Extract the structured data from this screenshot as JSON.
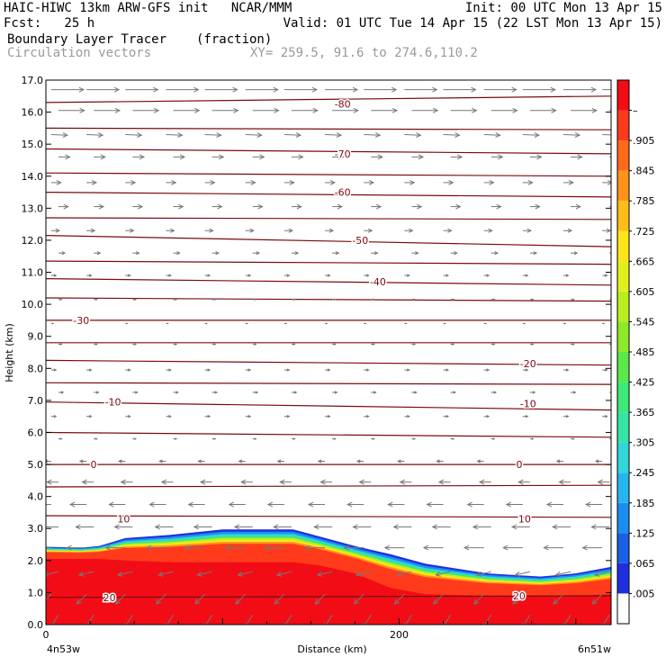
{
  "header": {
    "line1_left": "HAIC-HIWC 13km ARW-GFS init   NCAR/MMM",
    "line1_right": "Init: 00 UTC Mon 13 Apr 15",
    "line2_left": "Fcst:   25 h",
    "line2_right": "Valid: 01 UTC Tue 14 Apr 15 (22 LST Mon 13 Apr 15)",
    "line3_field": "Boundary Layer Tracer",
    "line3_units": "(fraction)",
    "line4_vectors": "Circulation vectors",
    "line4_xy": "XY= 259.5, 91.6 to 274.6,110.2"
  },
  "colors": {
    "contour": "#7a0a12",
    "vector": "#777777",
    "frame": "#000000"
  },
  "chart_data": {
    "type": "heatmap",
    "xlabel": "Distance (km)",
    "ylabel": "Height (km)",
    "xlim": [
      0,
      320
    ],
    "ylim": [
      0,
      17
    ],
    "x_ticks": [
      {
        "value": 0,
        "label": "0"
      },
      {
        "value": 200,
        "label": "200"
      }
    ],
    "x_endpoint_labels": {
      "left": "4n53w",
      "right": "6n51w"
    },
    "y_ticks": [
      {
        "value": 0,
        "label": "0.0"
      },
      {
        "value": 1,
        "label": "1.0"
      },
      {
        "value": 2,
        "label": "2.0"
      },
      {
        "value": 3,
        "label": "3.0"
      },
      {
        "value": 4,
        "label": "4.0"
      },
      {
        "value": 5,
        "label": "5.0"
      },
      {
        "value": 6,
        "label": "6.0"
      },
      {
        "value": 7,
        "label": "7.0"
      },
      {
        "value": 8,
        "label": "8.0"
      },
      {
        "value": 9,
        "label": "9.0"
      },
      {
        "value": 10,
        "label": "10.0"
      },
      {
        "value": 11,
        "label": "11.0"
      },
      {
        "value": 12,
        "label": "12.0"
      },
      {
        "value": 13,
        "label": "13.0"
      },
      {
        "value": 14,
        "label": "14.0"
      },
      {
        "value": 15,
        "label": "15.0"
      },
      {
        "value": 16,
        "label": "16.0"
      },
      {
        "value": 17,
        "label": "17.0"
      }
    ],
    "colorbar": {
      "labels": [
        ".005",
        ".065",
        ".125",
        ".185",
        ".245",
        ".305",
        ".365",
        ".425",
        ".485",
        ".545",
        ".605",
        ".665",
        ".725",
        ".785",
        ".845",
        ".905",
        "–"
      ],
      "colors": [
        "#ffffff",
        "#1f2fe0",
        "#1a60e6",
        "#1c8ef0",
        "#25b6ef",
        "#30d7d6",
        "#34e5a6",
        "#3ee978",
        "#5ce74a",
        "#8cea2a",
        "#bbee20",
        "#e1f01c",
        "#ffe41a",
        "#ffbd18",
        "#ff9419",
        "#ff6a1a",
        "#ff3b1c",
        "#f20d16"
      ]
    },
    "tracer_field": {
      "fraction_near_surface": 0.97,
      "top_profile": [
        {
          "x": 0,
          "top": 2.43,
          "red_top": 2.05
        },
        {
          "x": 20,
          "top": 2.4,
          "red_top": 2.05
        },
        {
          "x": 30,
          "top": 2.45,
          "red_top": 2.05
        },
        {
          "x": 45,
          "top": 2.7,
          "red_top": 2.0
        },
        {
          "x": 70,
          "top": 2.8,
          "red_top": 1.95
        },
        {
          "x": 100,
          "top": 2.97,
          "red_top": 1.95
        },
        {
          "x": 140,
          "top": 2.97,
          "red_top": 1.95
        },
        {
          "x": 155,
          "top": 2.75,
          "red_top": 1.85
        },
        {
          "x": 175,
          "top": 2.45,
          "red_top": 1.6
        },
        {
          "x": 195,
          "top": 2.2,
          "red_top": 1.15
        },
        {
          "x": 215,
          "top": 1.9,
          "red_top": 0.95
        },
        {
          "x": 250,
          "top": 1.6,
          "red_top": 0.9
        },
        {
          "x": 280,
          "top": 1.5,
          "red_top": 0.88
        },
        {
          "x": 300,
          "top": 1.6,
          "red_top": 0.9
        },
        {
          "x": 320,
          "top": 1.8,
          "red_top": 0.95
        }
      ]
    },
    "contours": [
      {
        "label": "-80",
        "x": [
          0,
          320
        ],
        "y": [
          16.3,
          16.5
        ]
      },
      {
        "label": "",
        "x": [
          0,
          320
        ],
        "y": [
          15.5,
          15.45
        ]
      },
      {
        "label": "-70",
        "x": [
          0,
          320
        ],
        "y": [
          14.85,
          14.7
        ]
      },
      {
        "label": "",
        "x": [
          0,
          320
        ],
        "y": [
          14.1,
          14.0
        ]
      },
      {
        "label": "-60",
        "x": [
          0,
          320
        ],
        "y": [
          13.5,
          13.35
        ]
      },
      {
        "label": "",
        "x": [
          0,
          320
        ],
        "y": [
          12.7,
          12.65
        ]
      },
      {
        "label": "-50",
        "x": [
          0,
          320
        ],
        "y": [
          12.15,
          11.8
        ]
      },
      {
        "label": "",
        "x": [
          0,
          320
        ],
        "y": [
          11.35,
          11.25
        ]
      },
      {
        "label": "-40",
        "x": [
          0,
          320
        ],
        "y": [
          10.8,
          10.6
        ]
      },
      {
        "label": "",
        "x": [
          0,
          320
        ],
        "y": [
          10.2,
          10.1
        ]
      },
      {
        "label": "-30",
        "x": [
          0,
          320
        ],
        "y": [
          9.5,
          9.5
        ]
      },
      {
        "label": "",
        "x": [
          0,
          320
        ],
        "y": [
          8.8,
          8.8
        ]
      },
      {
        "label": "-20",
        "x": [
          0,
          320
        ],
        "y": [
          8.25,
          8.1
        ]
      },
      {
        "label": "",
        "x": [
          0,
          320
        ],
        "y": [
          7.55,
          7.5
        ]
      },
      {
        "label": "-10",
        "x": [
          0,
          320
        ],
        "y": [
          6.95,
          6.7
        ]
      },
      {
        "label": "",
        "x": [
          0,
          320
        ],
        "y": [
          6.0,
          5.85
        ]
      },
      {
        "label": "0",
        "x": [
          0,
          320
        ],
        "y": [
          5.0,
          5.0
        ]
      },
      {
        "label": "",
        "x": [
          0,
          320
        ],
        "y": [
          4.3,
          4.35
        ]
      },
      {
        "label": "10",
        "x": [
          0,
          320
        ],
        "y": [
          3.4,
          3.35
        ]
      },
      {
        "label": "20",
        "x": [
          0,
          320
        ],
        "y": [
          0.85,
          0.9
        ]
      }
    ],
    "contour_labels": [
      {
        "text": "-80",
        "x": 168,
        "y": 16.25
      },
      {
        "text": "-70",
        "x": 168,
        "y": 14.7
      },
      {
        "text": "-60",
        "x": 168,
        "y": 13.5
      },
      {
        "text": "-50",
        "x": 178,
        "y": 12.0
      },
      {
        "text": "-40",
        "x": 188,
        "y": 10.7
      },
      {
        "text": "-30",
        "x": 20,
        "y": 9.5
      },
      {
        "text": "-20",
        "x": 273,
        "y": 8.15
      },
      {
        "text": "-10",
        "x": 38,
        "y": 6.95
      },
      {
        "text": "-10",
        "x": 273,
        "y": 6.9
      },
      {
        "text": "0",
        "x": 27,
        "y": 5.0
      },
      {
        "text": "0",
        "x": 268,
        "y": 5.0
      },
      {
        "text": "10",
        "x": 44,
        "y": 3.3
      },
      {
        "text": "10",
        "x": 271,
        "y": 3.3
      },
      {
        "text": "20",
        "x": 36,
        "y": 0.85
      },
      {
        "text": "20",
        "x": 268,
        "y": 0.9
      }
    ],
    "vectors": {
      "x_columns": [
        3,
        23,
        45,
        68,
        90,
        113,
        135,
        158,
        180,
        203,
        225,
        248,
        270,
        293,
        315
      ],
      "levels": [
        {
          "y": 16.7,
          "u": 1.0,
          "w": 0.0
        },
        {
          "y": 16.05,
          "u": 0.8,
          "w": 0.0
        },
        {
          "y": 15.3,
          "u": 0.5,
          "w": -0.02
        },
        {
          "y": 14.6,
          "u": 0.35,
          "w": 0.0
        },
        {
          "y": 13.8,
          "u": 0.3,
          "w": 0.0
        },
        {
          "y": 13.05,
          "u": 0.3,
          "w": 0.0
        },
        {
          "y": 12.3,
          "u": 0.25,
          "w": 0.0
        },
        {
          "y": 11.6,
          "u": 0.2,
          "w": 0.0
        },
        {
          "y": 10.9,
          "u": 0.15,
          "w": 0.0
        },
        {
          "y": 10.15,
          "u": 0.1,
          "w": 0.0
        },
        {
          "y": 9.4,
          "u": 0.06,
          "w": 0.0
        },
        {
          "y": 8.75,
          "u": 0.1,
          "w": 0.0
        },
        {
          "y": 7.95,
          "u": 0.15,
          "w": 0.0
        },
        {
          "y": 7.25,
          "u": 0.15,
          "w": 0.0
        },
        {
          "y": 6.5,
          "u": 0.15,
          "w": 0.0
        },
        {
          "y": 5.8,
          "u": 0.1,
          "w": 0.0
        },
        {
          "y": 5.1,
          "u": -0.2,
          "w": 0.0
        },
        {
          "y": 4.45,
          "u": -0.35,
          "w": 0.0
        },
        {
          "y": 3.75,
          "u": -0.5,
          "w": 0.0
        },
        {
          "y": 3.05,
          "u": -0.55,
          "w": 0.0
        },
        {
          "y": 2.4,
          "u": -0.6,
          "w": 0.0
        },
        {
          "y": 1.65,
          "u": -0.45,
          "w": -0.1
        },
        {
          "y": 0.95,
          "u": -0.3,
          "w": -0.3
        },
        {
          "y": 0.3,
          "u": -0.25,
          "w": -0.4
        }
      ]
    }
  }
}
